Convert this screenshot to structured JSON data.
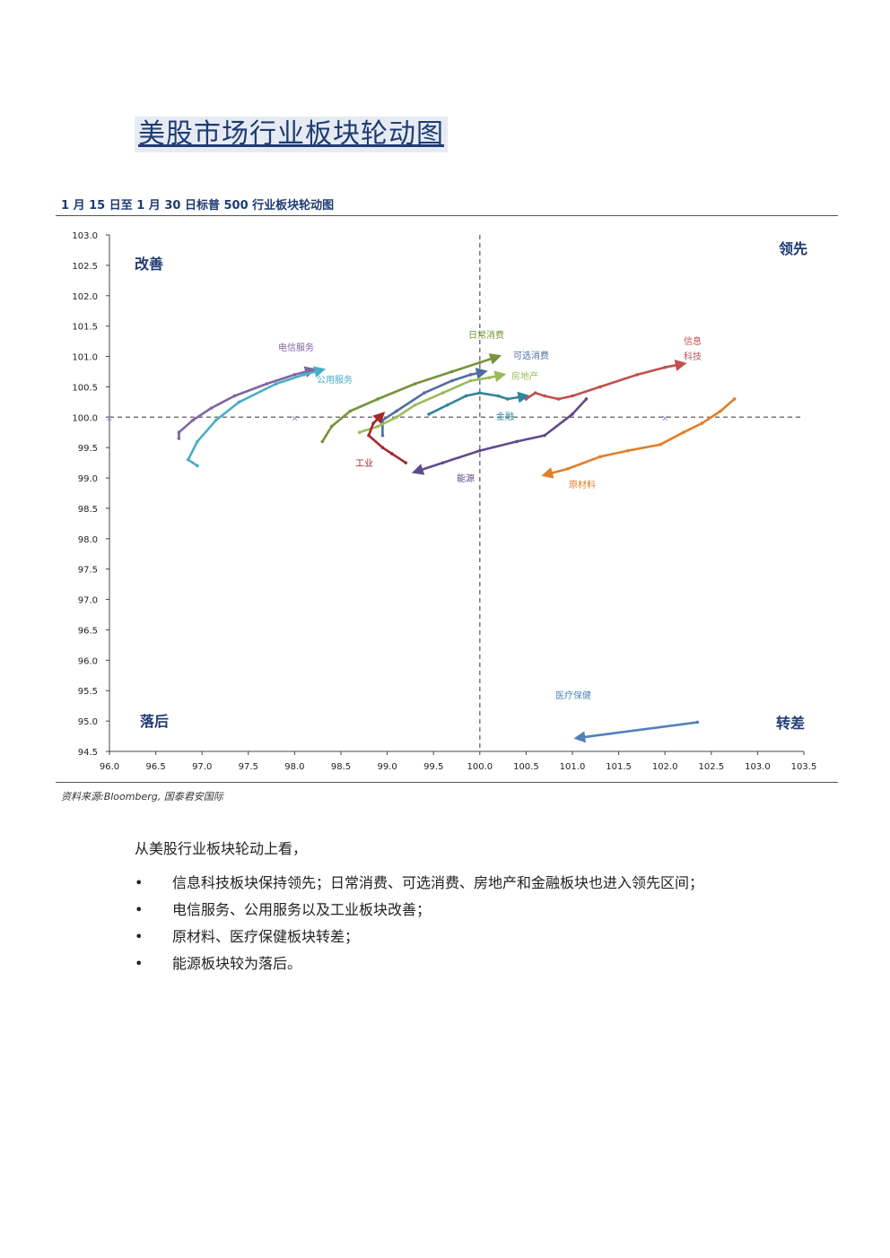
{
  "page": {
    "title": "美股市场行业板块轮动图",
    "chart_caption": "1 月 15 日至 1 月 30 日标普 500 行业板块轮动图",
    "source": "资料来源:Bloomberg, 国泰君安国际",
    "intro": "从美股行业板块轮动上看，",
    "bullets": [
      "信息科技板块保持领先；日常消费、可选消费、房地产和金融板块也进入领先区间；",
      "电信服务、公用服务以及工业板块改善；",
      "原材料、医疗保健板块转差；",
      "能源板块较为落后。"
    ],
    "bullet_symbol": "•"
  },
  "chart_data": {
    "type": "line",
    "title": "",
    "xlabel": "",
    "ylabel": "",
    "xlim": [
      96.0,
      103.5
    ],
    "ylim": [
      94.5,
      103.0
    ],
    "x_ticks": [
      "96.0",
      "96.5",
      "97.0",
      "97.5",
      "98.0",
      "98.5",
      "99.0",
      "99.5",
      "100.0",
      "100.5",
      "101.0",
      "101.5",
      "102.0",
      "102.5",
      "103.0",
      "103.5"
    ],
    "y_ticks": [
      "94.5",
      "95.0",
      "95.5",
      "96.0",
      "96.5",
      "97.0",
      "97.5",
      "98.0",
      "98.5",
      "99.0",
      "99.5",
      "100.0",
      "100.5",
      "101.0",
      "101.5",
      "102.0",
      "102.5",
      "103.0"
    ],
    "reference_lines": {
      "x": 100.0,
      "y": 100.0
    },
    "quadrants": {
      "top_left": "改善",
      "top_right": "领先",
      "bottom_left": "落后",
      "bottom_right": "转差"
    },
    "grid": false,
    "series": [
      {
        "name": "信息科技",
        "color": "#c0504d",
        "points": [
          [
            100.5,
            100.3
          ],
          [
            100.6,
            100.4
          ],
          [
            100.7,
            100.35
          ],
          [
            100.85,
            100.3
          ],
          [
            101.0,
            100.35
          ],
          [
            101.3,
            100.5
          ],
          [
            101.7,
            100.7
          ],
          [
            102.0,
            100.82
          ],
          [
            102.2,
            100.88
          ]
        ]
      },
      {
        "name": "日常消费",
        "color": "#77933c",
        "points": [
          [
            98.3,
            99.6
          ],
          [
            98.4,
            99.85
          ],
          [
            98.6,
            100.1
          ],
          [
            98.9,
            100.3
          ],
          [
            99.3,
            100.55
          ],
          [
            99.7,
            100.75
          ],
          [
            100.0,
            100.9
          ],
          [
            100.2,
            101.0
          ]
        ]
      },
      {
        "name": "可选消费",
        "color": "#4f6ea0",
        "points": [
          [
            98.95,
            99.7
          ],
          [
            98.95,
            99.95
          ],
          [
            99.1,
            100.1
          ],
          [
            99.4,
            100.4
          ],
          [
            99.7,
            100.6
          ],
          [
            99.9,
            100.7
          ],
          [
            100.05,
            100.75
          ]
        ]
      },
      {
        "name": "房地产",
        "color": "#9bbb59",
        "points": [
          [
            98.7,
            99.75
          ],
          [
            98.9,
            99.85
          ],
          [
            99.1,
            100.0
          ],
          [
            99.3,
            100.2
          ],
          [
            99.6,
            100.4
          ],
          [
            99.9,
            100.6
          ],
          [
            100.1,
            100.65
          ],
          [
            100.25,
            100.7
          ]
        ]
      },
      {
        "name": "金融",
        "color": "#31859c",
        "points": [
          [
            99.45,
            100.05
          ],
          [
            99.65,
            100.2
          ],
          [
            99.85,
            100.35
          ],
          [
            100.0,
            100.4
          ],
          [
            100.2,
            100.35
          ],
          [
            100.3,
            100.3
          ],
          [
            100.5,
            100.35
          ]
        ]
      },
      {
        "name": "电信服务",
        "color": "#8064a2",
        "points": [
          [
            96.75,
            99.65
          ],
          [
            96.75,
            99.75
          ],
          [
            96.9,
            99.95
          ],
          [
            97.1,
            100.15
          ],
          [
            97.35,
            100.35
          ],
          [
            97.7,
            100.55
          ],
          [
            98.0,
            100.7
          ],
          [
            98.2,
            100.78
          ]
        ]
      },
      {
        "name": "公用服务",
        "color": "#4bacc6",
        "points": [
          [
            96.95,
            99.2
          ],
          [
            96.85,
            99.3
          ],
          [
            96.95,
            99.6
          ],
          [
            97.15,
            99.95
          ],
          [
            97.4,
            100.25
          ],
          [
            97.8,
            100.55
          ],
          [
            98.1,
            100.7
          ],
          [
            98.3,
            100.78
          ]
        ]
      },
      {
        "name": "工业",
        "color": "#a6262c",
        "points": [
          [
            99.2,
            99.25
          ],
          [
            99.05,
            99.4
          ],
          [
            98.95,
            99.5
          ],
          [
            98.8,
            99.7
          ],
          [
            98.85,
            99.9
          ],
          [
            98.95,
            100.05
          ]
        ]
      },
      {
        "name": "原材料",
        "color": "#e07f2a",
        "points": [
          [
            102.75,
            100.3
          ],
          [
            102.6,
            100.1
          ],
          [
            102.4,
            99.9
          ],
          [
            102.2,
            99.75
          ],
          [
            101.95,
            99.55
          ],
          [
            101.6,
            99.45
          ],
          [
            101.3,
            99.35
          ],
          [
            100.95,
            99.15
          ],
          [
            100.7,
            99.05
          ]
        ]
      },
      {
        "name": "能源",
        "color": "#5f4b8b",
        "points": [
          [
            101.15,
            100.3
          ],
          [
            101.0,
            100.05
          ],
          [
            100.7,
            99.7
          ],
          [
            100.4,
            99.6
          ],
          [
            100.0,
            99.45
          ],
          [
            99.6,
            99.25
          ],
          [
            99.3,
            99.1
          ]
        ]
      },
      {
        "name": "医疗保健",
        "color": "#4f81bd",
        "points": [
          [
            102.35,
            94.98
          ],
          [
            101.05,
            94.72
          ]
        ]
      }
    ]
  }
}
